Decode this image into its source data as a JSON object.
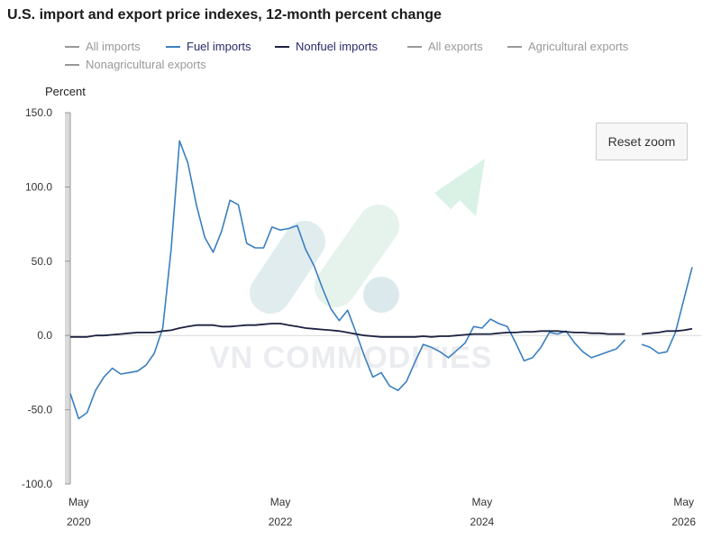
{
  "title": "U.S. import and export price indexes, 12-month percent change",
  "legend": [
    {
      "label": "All imports",
      "color": "#999999",
      "active": false
    },
    {
      "label": "Fuel imports",
      "color": "#3a7fbf",
      "active": true
    },
    {
      "label": "Nonfuel imports",
      "color": "#1b2240",
      "active": true
    },
    {
      "label": "All exports",
      "color": "#999999",
      "active": false
    },
    {
      "label": "Agricultural exports",
      "color": "#999999",
      "active": false
    },
    {
      "label": "Nonagricultural exports",
      "color": "#999999",
      "active": false
    }
  ],
  "reset_zoom_label": "Reset zoom",
  "watermark": "VN COMMODITIES",
  "colors": {
    "fuel": "#3a7fbf",
    "nonfuel": "#1b2240",
    "arrow": "#b9e8cf",
    "wm": "#c9dde2"
  },
  "chart_data": {
    "type": "line",
    "ylabel": "Percent",
    "ylim": [
      -100,
      150
    ],
    "yticks": [
      150.0,
      100.0,
      50.0,
      0.0,
      -50.0,
      -100.0
    ],
    "xlim": [
      "2020-04",
      "2026-06"
    ],
    "xticks": [
      {
        "month": "May",
        "year": "2020",
        "date": "2020-05"
      },
      {
        "month": "May",
        "year": "2022",
        "date": "2022-05"
      },
      {
        "month": "May",
        "year": "2024",
        "date": "2024-05"
      },
      {
        "month": "May",
        "year": "2026",
        "date": "2026-05"
      }
    ],
    "series": [
      {
        "name": "Fuel imports",
        "color": "#3a7fbf",
        "points": [
          [
            "2020-04",
            -39
          ],
          [
            "2020-05",
            -56
          ],
          [
            "2020-06",
            -52
          ],
          [
            "2020-07",
            -37
          ],
          [
            "2020-08",
            -28
          ],
          [
            "2020-09",
            -22
          ],
          [
            "2020-10",
            -26
          ],
          [
            "2020-11",
            -25
          ],
          [
            "2020-12",
            -24
          ],
          [
            "2021-01",
            -20
          ],
          [
            "2021-02",
            -12
          ],
          [
            "2021-03",
            5
          ],
          [
            "2021-04",
            58
          ],
          [
            "2021-05",
            131
          ],
          [
            "2021-06",
            116
          ],
          [
            "2021-07",
            88
          ],
          [
            "2021-08",
            66
          ],
          [
            "2021-09",
            56
          ],
          [
            "2021-10",
            70
          ],
          [
            "2021-11",
            91
          ],
          [
            "2021-12",
            88
          ],
          [
            "2022-01",
            62
          ],
          [
            "2022-02",
            59
          ],
          [
            "2022-03",
            59
          ],
          [
            "2022-04",
            73
          ],
          [
            "2022-05",
            71
          ],
          [
            "2022-06",
            72
          ],
          [
            "2022-07",
            74
          ],
          [
            "2022-08",
            58
          ],
          [
            "2022-09",
            47
          ],
          [
            "2022-10",
            32
          ],
          [
            "2022-11",
            18
          ],
          [
            "2022-12",
            10
          ],
          [
            "2023-01",
            17
          ],
          [
            "2023-02",
            2
          ],
          [
            "2023-03",
            -14
          ],
          [
            "2023-04",
            -28
          ],
          [
            "2023-05",
            -25
          ],
          [
            "2023-06",
            -34
          ],
          [
            "2023-07",
            -37
          ],
          [
            "2023-08",
            -31
          ],
          [
            "2023-09",
            -18
          ],
          [
            "2023-10",
            -6
          ],
          [
            "2023-11",
            -8
          ],
          [
            "2023-12",
            -11
          ],
          [
            "2024-01",
            -15
          ],
          [
            "2024-02",
            -10
          ],
          [
            "2024-03",
            -5
          ],
          [
            "2024-04",
            6
          ],
          [
            "2024-05",
            5
          ],
          [
            "2024-06",
            11
          ],
          [
            "2024-07",
            8
          ],
          [
            "2024-08",
            6
          ],
          [
            "2024-09",
            -5
          ],
          [
            "2024-10",
            -17
          ],
          [
            "2024-11",
            -15
          ],
          [
            "2024-12",
            -8
          ],
          [
            "2025-01",
            2
          ],
          [
            "2025-02",
            1
          ],
          [
            "2025-03",
            3
          ],
          [
            "2025-04",
            -5
          ],
          [
            "2025-05",
            -11
          ],
          [
            "2025-06",
            -15
          ],
          [
            "2025-07",
            -13
          ],
          [
            "2025-08",
            -11
          ],
          [
            "2025-09",
            -9
          ],
          [
            "2025-10",
            -3
          ],
          null,
          [
            "2025-12",
            -6
          ],
          [
            "2026-01",
            -8
          ],
          [
            "2026-02",
            -12
          ],
          [
            "2026-03",
            -11
          ],
          [
            "2026-04",
            2
          ],
          [
            "2026-05",
            24
          ],
          [
            "2026-06",
            46
          ]
        ]
      },
      {
        "name": "Nonfuel imports",
        "color": "#1b2240",
        "points": [
          [
            "2020-04",
            -1
          ],
          [
            "2020-05",
            -1
          ],
          [
            "2020-06",
            -1
          ],
          [
            "2020-07",
            0
          ],
          [
            "2020-08",
            0
          ],
          [
            "2020-09",
            0.5
          ],
          [
            "2020-10",
            1
          ],
          [
            "2020-11",
            1.5
          ],
          [
            "2020-12",
            2
          ],
          [
            "2021-01",
            2
          ],
          [
            "2021-02",
            2
          ],
          [
            "2021-03",
            3
          ],
          [
            "2021-04",
            3.5
          ],
          [
            "2021-05",
            5
          ],
          [
            "2021-06",
            6
          ],
          [
            "2021-07",
            7
          ],
          [
            "2021-08",
            7
          ],
          [
            "2021-09",
            7
          ],
          [
            "2021-10",
            6
          ],
          [
            "2021-11",
            6
          ],
          [
            "2021-12",
            6.5
          ],
          [
            "2022-01",
            7
          ],
          [
            "2022-02",
            7
          ],
          [
            "2022-03",
            7.5
          ],
          [
            "2022-04",
            8
          ],
          [
            "2022-05",
            8
          ],
          [
            "2022-06",
            7
          ],
          [
            "2022-07",
            6
          ],
          [
            "2022-08",
            5
          ],
          [
            "2022-09",
            4.5
          ],
          [
            "2022-10",
            4
          ],
          [
            "2022-11",
            3.5
          ],
          [
            "2022-12",
            3
          ],
          [
            "2023-01",
            2
          ],
          [
            "2023-02",
            1
          ],
          [
            "2023-03",
            0
          ],
          [
            "2023-04",
            -0.5
          ],
          [
            "2023-05",
            -1
          ],
          [
            "2023-06",
            -1
          ],
          [
            "2023-07",
            -1
          ],
          [
            "2023-08",
            -1
          ],
          [
            "2023-09",
            -1
          ],
          [
            "2023-10",
            -0.5
          ],
          [
            "2023-11",
            -1
          ],
          [
            "2023-12",
            -0.5
          ],
          [
            "2024-01",
            -0.5
          ],
          [
            "2024-02",
            0
          ],
          [
            "2024-03",
            0.5
          ],
          [
            "2024-04",
            1
          ],
          [
            "2024-05",
            1
          ],
          [
            "2024-06",
            1
          ],
          [
            "2024-07",
            1.5
          ],
          [
            "2024-08",
            2
          ],
          [
            "2024-09",
            2
          ],
          [
            "2024-10",
            2.5
          ],
          [
            "2024-11",
            2.5
          ],
          [
            "2024-12",
            3
          ],
          [
            "2025-01",
            3
          ],
          [
            "2025-02",
            3
          ],
          [
            "2025-03",
            2.5
          ],
          [
            "2025-04",
            2
          ],
          [
            "2025-05",
            2
          ],
          [
            "2025-06",
            1.5
          ],
          [
            "2025-07",
            1.5
          ],
          [
            "2025-08",
            1
          ],
          [
            "2025-09",
            1
          ],
          [
            "2025-10",
            1
          ],
          null,
          [
            "2025-12",
            1
          ],
          [
            "2026-01",
            1.5
          ],
          [
            "2026-02",
            2
          ],
          [
            "2026-03",
            3
          ],
          [
            "2026-04",
            3
          ],
          [
            "2026-05",
            3.5
          ],
          [
            "2026-06",
            4.5
          ]
        ]
      }
    ]
  }
}
